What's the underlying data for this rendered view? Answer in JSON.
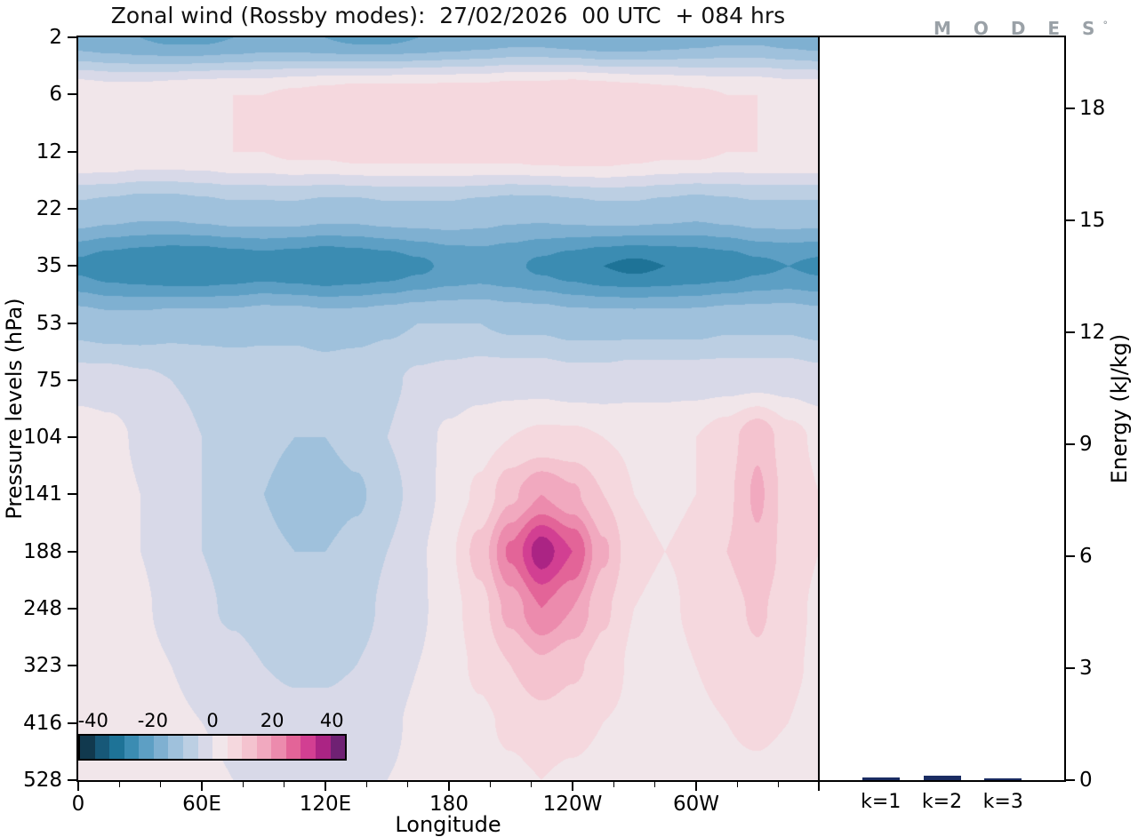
{
  "title": "Zonal wind (Rossby modes):  27/02/2026  00 UTC  + 084 hrs",
  "logo": {
    "text": "M O D E S",
    "mark": "°"
  },
  "chart_data": [
    {
      "type": "heatmap",
      "title": "Zonal wind (Rossby modes): 27/02/2026 00 UTC + 084 hrs",
      "xlabel": "Longitude",
      "ylabel": "Pressure levels (hPa)",
      "x_range": [
        0,
        360
      ],
      "x_minor_step": 20,
      "x_ticks": [
        {
          "value": 0,
          "label": "0"
        },
        {
          "value": 60,
          "label": "60E"
        },
        {
          "value": 120,
          "label": "120E"
        },
        {
          "value": 180,
          "label": "180"
        },
        {
          "value": 240,
          "label": "120W"
        },
        {
          "value": 300,
          "label": "60W"
        }
      ],
      "pressure_levels": [
        2,
        6,
        12,
        22,
        35,
        53,
        75,
        104,
        141,
        188,
        248,
        323,
        416,
        528
      ],
      "colorbar": {
        "min": -45,
        "max": 45,
        "step": 5,
        "tick_values": [
          -40,
          -20,
          0,
          20,
          40
        ],
        "tick_labels": [
          "-40",
          "-20",
          "0",
          "20",
          "40"
        ],
        "colors": [
          "#11394e",
          "#175878",
          "#1e7397",
          "#3b8cb2",
          "#5d9fc4",
          "#7fb0d1",
          "#9fc1dc",
          "#bccfe3",
          "#d8d9e8",
          "#f1e6ea",
          "#f5d8de",
          "#f4c3cf",
          "#f1a9bf",
          "#ec8bad",
          "#e36498",
          "#d23f92",
          "#ab2484",
          "#6f2173"
        ]
      },
      "grid_lon_step": 15,
      "values": [
        [
          -18,
          -19,
          -20,
          -21,
          -21,
          -20,
          -19,
          -19,
          -20,
          -21,
          -21,
          -20,
          -19,
          -18,
          -17,
          -17,
          -18,
          -19,
          -19,
          -18,
          -17,
          -16,
          -16,
          -17,
          -18
        ],
        [
          4,
          3,
          3,
          4,
          5,
          5,
          5,
          6,
          7,
          8,
          8,
          8,
          8,
          8,
          9,
          9,
          10,
          9,
          8,
          7,
          6,
          5,
          5,
          4,
          4
        ],
        [
          5,
          5,
          4,
          4,
          4,
          5,
          5,
          6,
          6,
          7,
          7,
          7,
          7,
          7,
          7,
          8,
          8,
          8,
          7,
          6,
          6,
          5,
          5,
          5,
          5
        ],
        [
          -11,
          -12,
          -13,
          -13,
          -12,
          -11,
          -11,
          -11,
          -12,
          -12,
          -11,
          -11,
          -11,
          -12,
          -13,
          -13,
          -12,
          -11,
          -11,
          -12,
          -13,
          -12,
          -11,
          -11,
          -11
        ],
        [
          -26,
          -28,
          -29,
          -30,
          -30,
          -29,
          -28,
          -29,
          -30,
          -29,
          -28,
          -26,
          -24,
          -23,
          -24,
          -26,
          -28,
          -30,
          -31,
          -30,
          -29,
          -28,
          -26,
          -25,
          -26
        ],
        [
          -12,
          -13,
          -13,
          -12,
          -12,
          -12,
          -11,
          -11,
          -12,
          -12,
          -11,
          -10,
          -10,
          -10,
          -11,
          -11,
          -12,
          -12,
          -12,
          -12,
          -12,
          -11,
          -11,
          -11,
          -12
        ],
        [
          -3,
          -3,
          -4,
          -5,
          -6,
          -7,
          -8,
          -8,
          -8,
          -7,
          -6,
          -4,
          -3,
          -2,
          -2,
          -2,
          -3,
          -3,
          -2,
          -2,
          -2,
          -2,
          -2,
          -2,
          -3
        ],
        [
          4,
          2,
          -1,
          -3,
          -5,
          -7,
          -9,
          -10,
          -10,
          -8,
          -5,
          -2,
          1,
          3,
          5,
          6,
          6,
          5,
          4,
          4,
          5,
          8,
          14,
          7,
          4
        ],
        [
          5,
          3,
          0,
          -3,
          -5,
          -7,
          -10,
          -12,
          -13,
          -11,
          -7,
          -3,
          2,
          6,
          14,
          20,
          16,
          10,
          5,
          4,
          5,
          9,
          16,
          8,
          5
        ],
        [
          4,
          3,
          0,
          -3,
          -5,
          -7,
          -9,
          -10,
          -10,
          -8,
          -5,
          -1,
          4,
          12,
          26,
          38,
          30,
          16,
          6,
          5,
          6,
          10,
          14,
          8,
          5
        ],
        [
          4,
          3,
          1,
          -2,
          -4,
          -6,
          -8,
          -9,
          -9,
          -7,
          -4,
          -1,
          3,
          8,
          17,
          25,
          20,
          11,
          5,
          4,
          6,
          8,
          11,
          7,
          4
        ],
        [
          4,
          3,
          2,
          0,
          -2,
          -3,
          -5,
          -6,
          -6,
          -5,
          -3,
          0,
          3,
          6,
          10,
          14,
          11,
          8,
          4,
          3,
          5,
          7,
          9,
          6,
          4
        ],
        [
          3,
          3,
          2,
          1,
          0,
          -1,
          -2,
          -3,
          -3,
          -2,
          -1,
          1,
          2,
          4,
          6,
          8,
          7,
          5,
          4,
          3,
          4,
          5,
          6,
          5,
          3
        ],
        [
          3,
          2,
          2,
          1,
          1,
          0,
          -1,
          -1,
          -2,
          -1,
          0,
          1,
          2,
          3,
          4,
          5,
          4,
          3,
          3,
          2,
          3,
          4,
          4,
          3,
          3
        ]
      ]
    },
    {
      "type": "bar",
      "categories": [
        "k=1",
        "k=2",
        "k=3"
      ],
      "values": [
        0.08,
        0.13,
        0.05
      ],
      "ylabel": "Energy (kJ/kg)",
      "ylim": [
        0,
        19.9
      ],
      "y_ticks": [
        0,
        3,
        6,
        9,
        12,
        15,
        18
      ],
      "bar_color": "#1a2c62"
    }
  ]
}
